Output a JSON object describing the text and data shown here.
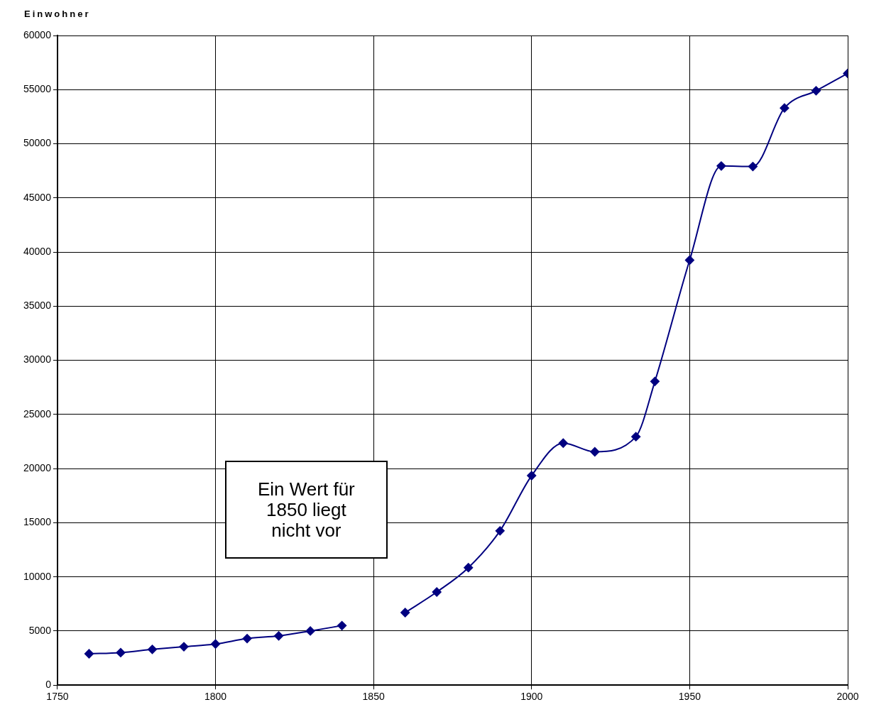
{
  "chart_data": {
    "type": "line",
    "ylabel": "Einwohner",
    "x": [
      1760,
      1770,
      1780,
      1790,
      1800,
      1810,
      1820,
      1830,
      1840,
      1850,
      1860,
      1870,
      1880,
      1890,
      1900,
      1910,
      1920,
      1933,
      1939,
      1950,
      1960,
      1970,
      1980,
      1990,
      2000
    ],
    "series": [
      {
        "color": "#000080",
        "values": [
          2900,
          3000,
          3300,
          3550,
          3800,
          4300,
          4550,
          5000,
          5500,
          null,
          6700,
          8600,
          10850,
          14250,
          19350,
          22350,
          21550,
          22950,
          28050,
          39250,
          47950,
          47900,
          53300,
          54900,
          56500
        ]
      }
    ],
    "xlim": [
      1750,
      2000
    ],
    "xticks": [
      1750,
      1800,
      1850,
      1900,
      1950,
      2000
    ],
    "ylim": [
      0,
      60000
    ],
    "yticks": [
      0,
      5000,
      10000,
      15000,
      20000,
      25000,
      30000,
      35000,
      40000,
      45000,
      50000,
      55000,
      60000
    ],
    "grid": true,
    "marker": "diamond",
    "line_style": "solid",
    "legend": false,
    "annotations": [
      "Ein Wert für\n1850 liegt\nnicht vor"
    ]
  }
}
